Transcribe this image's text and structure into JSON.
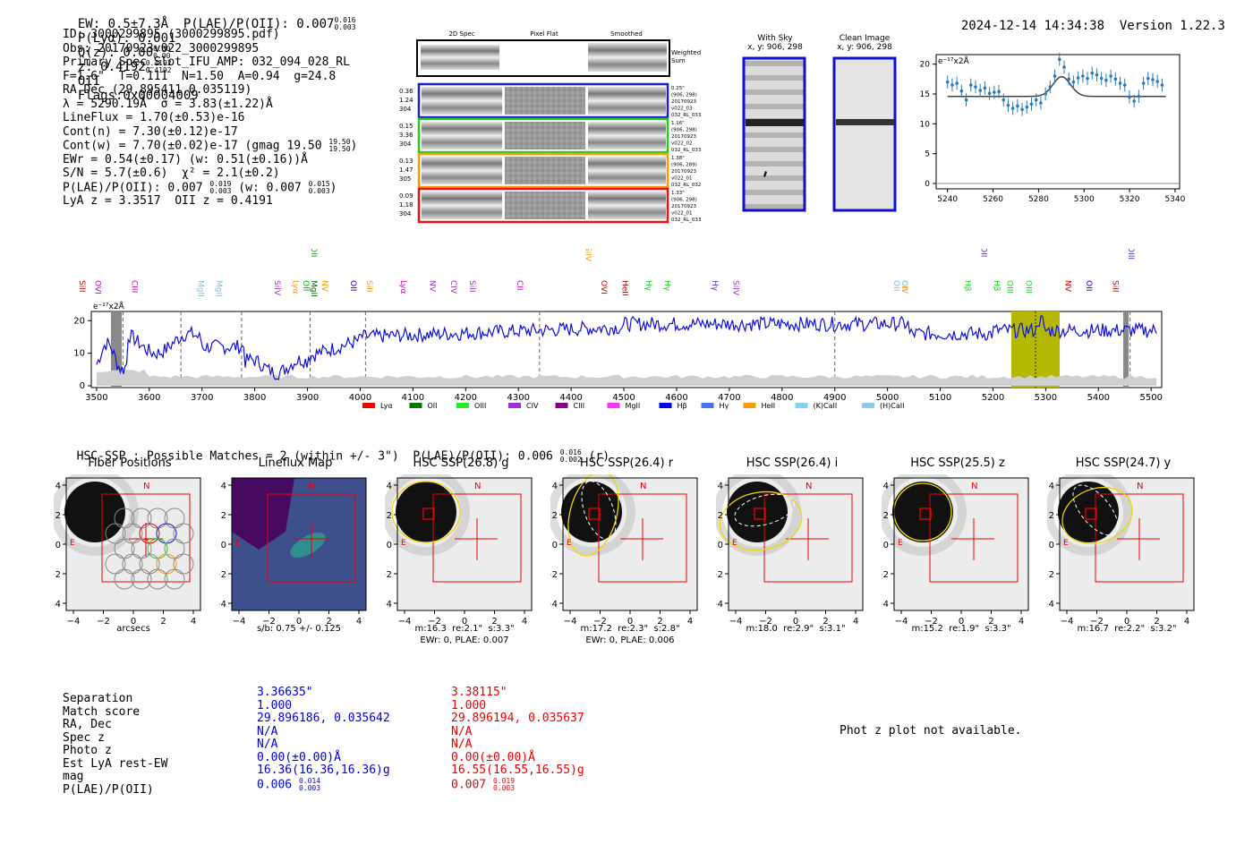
{
  "header": {
    "line": "EW: 0.5±7.3Å  P(LAE)/P(OII): 0.007",
    "plae_sup": "0.016",
    "plae_sub": "0.003",
    "plya": "P(Lyα): 0.001",
    "qz": "Q(z): 0.00",
    "qz_sup": "0.00",
    "qz_sub": "0.00",
    "z": "z: 0.4192",
    "z_sup": "0.4192",
    "z_sub": "0.4192",
    "z_line": "OII",
    "flags": "Flags:0x00004009",
    "timestamp": "2024-12-14 14:34:38",
    "version": "Version 1.22.3"
  },
  "info": {
    "id": "ID: 3000299895 (3000299895.pdf)",
    "obs": "Obs: 20170923v022_3000299895",
    "primary": "Primary Spec_Slot_IFU_AMP: 032_094_028_RL",
    "fwhm": "F=1.6\"  T=0.111  N=1.50  A=0.94  g=24.8",
    "radec": "RA,Dec (29.895411,0.035119)",
    "lambda": "λ = 5290.19Å  σ = 3.83(±1.22)Å",
    "lineflux": "LineFlux = 1.70(±0.53)e-16",
    "contn": "Cont(n) = 7.30(±0.12)e-17",
    "contw": "Cont(w) = 7.70(±0.02)e-17 (gmag 19.50",
    "contw_sup": "19.50",
    "contw_sub": "19.50",
    "ewr": "EWr = 0.54(±0.17) (w: 0.51(±0.16))Å",
    "sn": "S/N = 5.7(±0.6)  χ² = 2.1(±0.2)",
    "plae": "P(LAE)/P(OII): 0.007",
    "plae_sup": "0.019",
    "plae_sub": "0.003",
    "plae_w": "(w: 0.007",
    "plae_w_sup": "0.015",
    "plae_w_sub": "0.003",
    "lyaz": "LyA z = 3.3517  OII z = 0.4191"
  },
  "cutouts": {
    "col_titles": [
      "2D Spec",
      "Pixel Flat",
      "Smoothed"
    ],
    "weighted_sum": "Weighted Sum",
    "rows": [
      {
        "left": [
          "0.36",
          "1.24",
          "304"
        ],
        "right": [
          "0.25\"",
          "(906, 298)",
          "20170923",
          "v022_03",
          "032_RL_033"
        ],
        "color": "#1f1fcf"
      },
      {
        "left": [
          "0.15",
          "3.36",
          "304"
        ],
        "right": [
          "1.16\"",
          "(906, 298)",
          "20170923",
          "v022_02",
          "032_RL_033"
        ],
        "color": "#22cc22"
      },
      {
        "left": [
          "0.13",
          "1.47",
          "305"
        ],
        "right": [
          "1.38\"",
          "(906, 289)",
          "20170923",
          "v022_01",
          "032_RL_032"
        ],
        "color": "#ff9900"
      },
      {
        "left": [
          "0.09",
          "1.18",
          "304"
        ],
        "right": [
          "1.33\"",
          "(906, 298)",
          "20170923",
          "v022_01",
          "032_RL_033"
        ],
        "color": "#ee1111"
      }
    ]
  },
  "sky": {
    "with_sky_title": "With Sky",
    "with_sky_sub": "x, y: 906, 298",
    "clean_title": "Clean Image",
    "clean_sub": "x, y: 906, 298"
  },
  "zoom_fit": {
    "unit_label": "e⁻¹⁷x2Å",
    "x_ticks": [
      "5240",
      "5260",
      "5280",
      "5300",
      "5320",
      "5340"
    ],
    "y_ticks": [
      "0",
      "5",
      "10",
      "15",
      "20"
    ]
  },
  "spectrum": {
    "unit_label": "e⁻¹⁷x2Å",
    "x_ticks": [
      "3500",
      "3600",
      "3700",
      "3800",
      "3900",
      "4000",
      "4100",
      "4200",
      "4300",
      "4400",
      "4500",
      "4600",
      "4700",
      "4800",
      "4900",
      "5000",
      "5100",
      "5200",
      "5300",
      "5400",
      "5500"
    ],
    "y_ticks": [
      "0",
      "10",
      "20"
    ],
    "line_labels": [
      {
        "t": "SiII",
        "c": "#cc0000"
      },
      {
        "t": "OVI",
        "c": "#cc00cc"
      },
      {
        "t": "CIII",
        "c": "#cc00cc"
      },
      {
        "t": "MgII",
        "c": "#7fbfdf"
      },
      {
        "t": "MgII",
        "c": "#7fbfdf"
      },
      {
        "t": "SiIV",
        "c": "#9933cc"
      },
      {
        "t": "Lyα",
        "c": "#ff9900"
      },
      {
        "t": "OII",
        "c": "#00aa00"
      },
      {
        "t": "MgII",
        "c": "#006600"
      },
      {
        "t": "NV",
        "c": "#ff9900"
      },
      {
        "t": "OII",
        "c": "#0000cc"
      },
      {
        "t": "SiII",
        "c": "#ff9900"
      },
      {
        "t": "Lyα",
        "c": "#cc00cc"
      },
      {
        "t": "NV",
        "c": "#9933cc"
      },
      {
        "t": "CIV",
        "c": "#9933cc"
      },
      {
        "t": "SiII",
        "c": "#9933cc"
      },
      {
        "t": "CII",
        "c": "#cc00cc"
      },
      {
        "t": "OVI",
        "c": "#cc0000"
      },
      {
        "t": "HeII",
        "c": "#990000"
      },
      {
        "t": "Hγ",
        "c": "#22cc22"
      },
      {
        "t": "Hγ",
        "c": "#22cc22"
      },
      {
        "t": "Hγ",
        "c": "#3333ff"
      },
      {
        "t": "SiIV",
        "c": "#9933cc"
      },
      {
        "t": "OII",
        "c": "#7fbfdf"
      },
      {
        "t": "CIV",
        "c": "#ff9900"
      },
      {
        "t": "OII",
        "c": "#7fbfdf"
      },
      {
        "t": "Hβ",
        "c": "#22cc22"
      },
      {
        "t": "Hβ",
        "c": "#22cc22"
      },
      {
        "t": "OIII",
        "c": "#22cc22"
      },
      {
        "t": "OIII",
        "c": "#22cc22"
      },
      {
        "t": "NV",
        "c": "#cc0000"
      },
      {
        "t": "OII",
        "c": "#0000cc"
      },
      {
        "t": "SiII",
        "c": "#cc0000"
      },
      {
        "t": "OII",
        "c": "#00aa00"
      },
      {
        "t": "SiIV",
        "c": "#ff9900"
      },
      {
        "t": "OII",
        "c": "#3333ff"
      },
      {
        "t": "OIII",
        "c": "#3333ff"
      }
    ],
    "legend": [
      {
        "t": "Lyα",
        "c": "#ee0000"
      },
      {
        "t": "OII",
        "c": "#007700"
      },
      {
        "t": "OIII",
        "c": "#22ee22"
      },
      {
        "t": "CIV",
        "c": "#9933dd"
      },
      {
        "t": "CIII",
        "c": "#880088"
      },
      {
        "t": "MgII",
        "c": "#ff33ff"
      },
      {
        "t": "Hβ",
        "c": "#0000ee"
      },
      {
        "t": "Hγ",
        "c": "#4477ee"
      },
      {
        "t": "HeII",
        "c": "#ff9900"
      },
      {
        "t": "(K)CaII",
        "c": "#88ccee"
      },
      {
        "t": "(H)CaII",
        "c": "#88ccee"
      }
    ]
  },
  "hsc": {
    "title": "HSC-SSP : Possible Matches = 2 (within +/- 3\")  P(LAE)/P(OII): 0.006",
    "plae_sup": "0.016",
    "plae_sub": "0.002",
    "band": "(r)"
  },
  "panels": [
    {
      "title": "Fiber Positions",
      "cap1": "arcsecs",
      "cap2": ""
    },
    {
      "title": "Lineflux Map",
      "cap1": "s/b: 0.75 +/- 0.125",
      "cap2": ""
    },
    {
      "title": "HSC SSP(26.8) g",
      "cap1": "m:16.3  re:2.1\"  s:3.3\"",
      "cap2": "EWr: 0, PLAE: 0.007"
    },
    {
      "title": "HSC SSP(26.4) r",
      "cap1": "m:17.2  re:2.3\"  s:2.8\"",
      "cap2": "EWr: 0, PLAE: 0.006"
    },
    {
      "title": "HSC SSP(26.4) i",
      "cap1": "m:18.0  re:2.9\"  s:3.1\"",
      "cap2": ""
    },
    {
      "title": "HSC SSP(25.5) z",
      "cap1": "m:15.2  re:1.9\"  s:3.3\"",
      "cap2": ""
    },
    {
      "title": "HSC SSP(24.7) y",
      "cap1": "m:16.7  re:2.2\"  s:3.2\"",
      "cap2": ""
    }
  ],
  "panel_ticks": {
    "x": [
      "−4",
      "−2",
      "0",
      "2",
      "4"
    ],
    "y": [
      "4",
      "2",
      "0",
      "−2",
      "−4"
    ],
    "north": "N",
    "east": "E"
  },
  "matches": {
    "labels": [
      "Separation",
      "Match score",
      "RA, Dec",
      "Spec z",
      "Photo z",
      "Est LyA rest-EW",
      "mag",
      "P(LAE)/P(OII)"
    ],
    "m1": {
      "color": "#0000dd",
      "values": [
        "3.36635\"",
        "1.000",
        "29.896186, 0.035642",
        "N/A",
        "N/A",
        "0.00(±0.00)Å",
        "16.36(16.36,16.36)g",
        "0.006"
      ],
      "plae_sup": "0.014",
      "plae_sub": "0.003"
    },
    "m2": {
      "color": "#ee0000",
      "values": [
        "3.38115\"",
        "1.000",
        "29.896194, 0.035637",
        "N/A",
        "N/A",
        "0.00(±0.00)Å",
        "16.55(16.55,16.55)g",
        "0.007"
      ],
      "plae_sup": "0.019",
      "plae_sub": "0.003"
    }
  },
  "photz": "Phot z plot not available."
}
